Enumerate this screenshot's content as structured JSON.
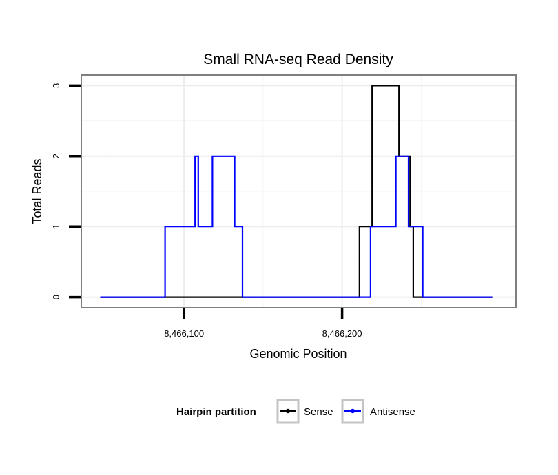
{
  "chart_data": {
    "type": "line",
    "title": "Small RNA-seq Read Density",
    "xlabel": "Genomic Position",
    "ylabel": "Total Reads",
    "xlim": [
      8466035,
      8466310
    ],
    "ylim": [
      -0.15,
      3.15
    ],
    "x_ticks": [
      8466100,
      8466200
    ],
    "x_tick_labels": [
      "8,466,100",
      "8,466,200"
    ],
    "y_ticks": [
      0,
      1,
      2,
      3
    ],
    "y_tick_labels": [
      "0",
      "1",
      "2",
      "3"
    ],
    "grid": true,
    "legend": {
      "title": "Hairpin partition",
      "position": "bottom",
      "entries": [
        "Sense",
        "Antisense"
      ]
    },
    "series": [
      {
        "name": "Sense",
        "color": "#000000",
        "points": [
          [
            8466047,
            0
          ],
          [
            8466211,
            0
          ],
          [
            8466211,
            1
          ],
          [
            8466219,
            1
          ],
          [
            8466219,
            3
          ],
          [
            8466236,
            3
          ],
          [
            8466236,
            2
          ],
          [
            8466243,
            2
          ],
          [
            8466243,
            1
          ],
          [
            8466245,
            1
          ],
          [
            8466245,
            0
          ],
          [
            8466295,
            0
          ]
        ]
      },
      {
        "name": "Antisense",
        "color": "#0000ff",
        "points": [
          [
            8466047,
            0
          ],
          [
            8466088,
            0
          ],
          [
            8466088,
            1
          ],
          [
            8466107,
            1
          ],
          [
            8466107,
            2
          ],
          [
            8466109,
            2
          ],
          [
            8466109,
            1
          ],
          [
            8466118,
            1
          ],
          [
            8466118,
            2
          ],
          [
            8466132,
            2
          ],
          [
            8466132,
            1
          ],
          [
            8466137,
            1
          ],
          [
            8466137,
            0
          ],
          [
            8466218,
            0
          ],
          [
            8466218,
            1
          ],
          [
            8466234,
            1
          ],
          [
            8466234,
            2
          ],
          [
            8466242,
            2
          ],
          [
            8466242,
            1
          ],
          [
            8466251,
            1
          ],
          [
            8466251,
            0
          ],
          [
            8466295,
            0
          ]
        ]
      }
    ]
  }
}
